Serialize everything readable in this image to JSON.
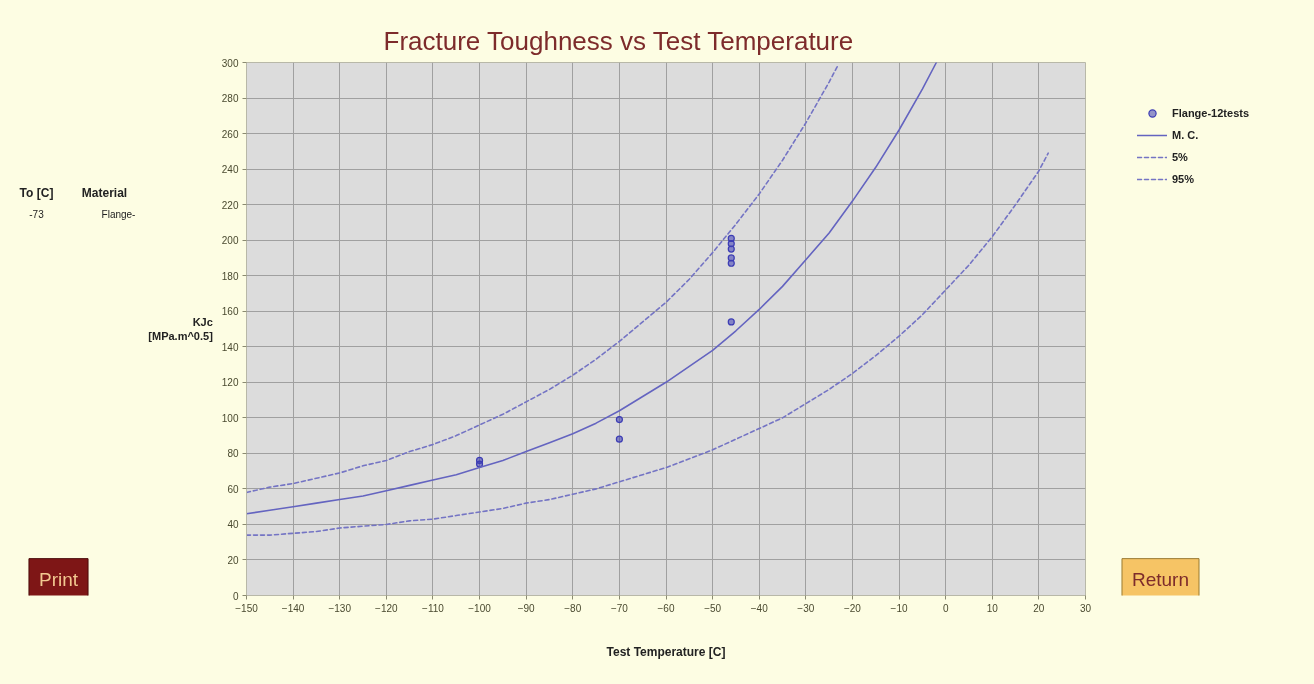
{
  "chart_data": {
    "type": "line",
    "title": "Fracture Toughness vs Test Temperature",
    "xlabel": "Test Temperature [C]",
    "ylabel": "KJc\n[MPa.m^0.5]",
    "xlim": [
      -150,
      30
    ],
    "xticks": [
      -150,
      -140,
      -130,
      -120,
      -110,
      -100,
      -90,
      -80,
      -70,
      -60,
      -50,
      -40,
      -30,
      -20,
      -10,
      0,
      10,
      20,
      30
    ],
    "ylim": [
      0,
      300
    ],
    "yticks": [
      0,
      20,
      40,
      60,
      80,
      100,
      120,
      140,
      160,
      180,
      200,
      220,
      240,
      260,
      280,
      300
    ],
    "grid": true,
    "legend": "top right",
    "series": [
      {
        "name": "Flange-12tests",
        "type": "scatter",
        "marker": "circle",
        "color": "#3c3cb4",
        "x": [
          -100,
          -100,
          -70,
          -70,
          -46,
          -46,
          -46,
          -46,
          -46,
          -46
        ],
        "values": [
          76,
          74,
          99,
          88,
          201,
          198,
          195,
          190,
          187,
          154
        ]
      },
      {
        "name": "M. C.",
        "line_style": "solid",
        "color": "#6464c0",
        "x": [
          -150,
          -145,
          -140,
          -135,
          -130,
          -125,
          -120,
          -115,
          -110,
          -105,
          -100,
          -95,
          -90,
          -85,
          -80,
          -75,
          -70,
          -65,
          -60,
          -55,
          -50,
          -45,
          -40,
          -35,
          -30,
          -25,
          -20,
          -15,
          -10,
          -5,
          -2
        ],
        "values": [
          46,
          48,
          50,
          52,
          54,
          56,
          59,
          62,
          65,
          68,
          72,
          76,
          81,
          86,
          91,
          97,
          104,
          112,
          120,
          129,
          138,
          149,
          161,
          174,
          189,
          204,
          222,
          241,
          262,
          285,
          300
        ]
      },
      {
        "name": "5%",
        "line_style": "dashed",
        "color": "#7474c4",
        "x": [
          -150,
          -145,
          -140,
          -135,
          -130,
          -125,
          -120,
          -115,
          -110,
          -105,
          -100,
          -95,
          -90,
          -85,
          -80,
          -75,
          -70,
          -65,
          -60,
          -55,
          -50,
          -45,
          -40,
          -35,
          -30,
          -25,
          -20,
          -15,
          -10,
          -5,
          0,
          5,
          10,
          15,
          20,
          22
        ],
        "values": [
          34,
          34,
          35,
          36,
          38,
          39,
          40,
          42,
          43,
          45,
          47,
          49,
          52,
          54,
          57,
          60,
          64,
          68,
          72,
          77,
          82,
          88,
          94,
          100,
          108,
          116,
          125,
          135,
          146,
          158,
          172,
          186,
          202,
          220,
          239,
          249
        ]
      },
      {
        "name": "95%",
        "line_style": "dashed",
        "color": "#7474c4",
        "x": [
          -150,
          -145,
          -140,
          -135,
          -130,
          -125,
          -120,
          -115,
          -110,
          -105,
          -100,
          -95,
          -90,
          -85,
          -80,
          -75,
          -70,
          -65,
          -60,
          -55,
          -50,
          -45,
          -40,
          -35,
          -30,
          -25,
          -23
        ],
        "values": [
          58,
          61,
          63,
          66,
          69,
          73,
          76,
          81,
          85,
          90,
          96,
          102,
          109,
          116,
          124,
          133,
          143,
          154,
          165,
          178,
          193,
          209,
          226,
          245,
          266,
          289,
          299
        ]
      }
    ],
    "annotations": [
      "To [C]",
      "Material",
      "-73",
      "Flange-",
      "Print",
      "Return"
    ]
  }
}
